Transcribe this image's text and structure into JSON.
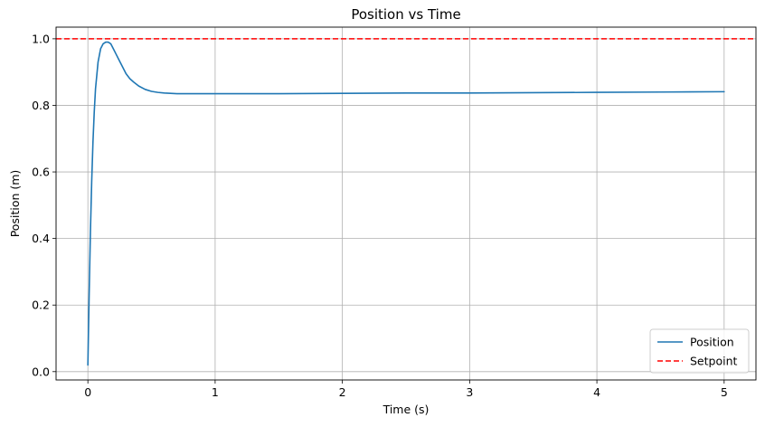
{
  "chart_data": {
    "type": "line",
    "title": "Position vs Time",
    "xlabel": "Time (s)",
    "ylabel": "Position (m)",
    "xlim": [
      -0.25,
      5.25
    ],
    "ylim": [
      -0.025,
      1.035
    ],
    "xticks": [
      0,
      1,
      2,
      3,
      4,
      5
    ],
    "xtick_labels": [
      "0",
      "1",
      "2",
      "3",
      "4",
      "5"
    ],
    "yticks": [
      0.0,
      0.2,
      0.4,
      0.6,
      0.8,
      1.0
    ],
    "ytick_labels": [
      "0.0",
      "0.2",
      "0.4",
      "0.6",
      "0.8",
      "1.0"
    ],
    "grid": true,
    "legend_position": "lower-right",
    "series": [
      {
        "name": "Position",
        "color": "#1f77b4",
        "style": "solid",
        "x": [
          0,
          0.01,
          0.02,
          0.03,
          0.04,
          0.05,
          0.06,
          0.08,
          0.1,
          0.12,
          0.14,
          0.16,
          0.18,
          0.2,
          0.22,
          0.24,
          0.26,
          0.28,
          0.3,
          0.33,
          0.36,
          0.4,
          0.45,
          0.5,
          0.55,
          0.6,
          0.7,
          0.8,
          0.9,
          1.0,
          1.5,
          2.0,
          2.5,
          3.0,
          3.5,
          4.0,
          4.5,
          5.0
        ],
        "y": [
          0.02,
          0.23,
          0.42,
          0.57,
          0.69,
          0.78,
          0.85,
          0.93,
          0.97,
          0.985,
          0.99,
          0.99,
          0.985,
          0.97,
          0.955,
          0.94,
          0.925,
          0.91,
          0.895,
          0.88,
          0.87,
          0.858,
          0.848,
          0.842,
          0.839,
          0.837,
          0.835,
          0.835,
          0.835,
          0.835,
          0.835,
          0.836,
          0.837,
          0.837,
          0.838,
          0.839,
          0.84,
          0.841
        ]
      },
      {
        "name": "Setpoint",
        "color": "#ff0000",
        "style": "dashed",
        "type": "hline",
        "y_value": 1.0
      }
    ]
  }
}
